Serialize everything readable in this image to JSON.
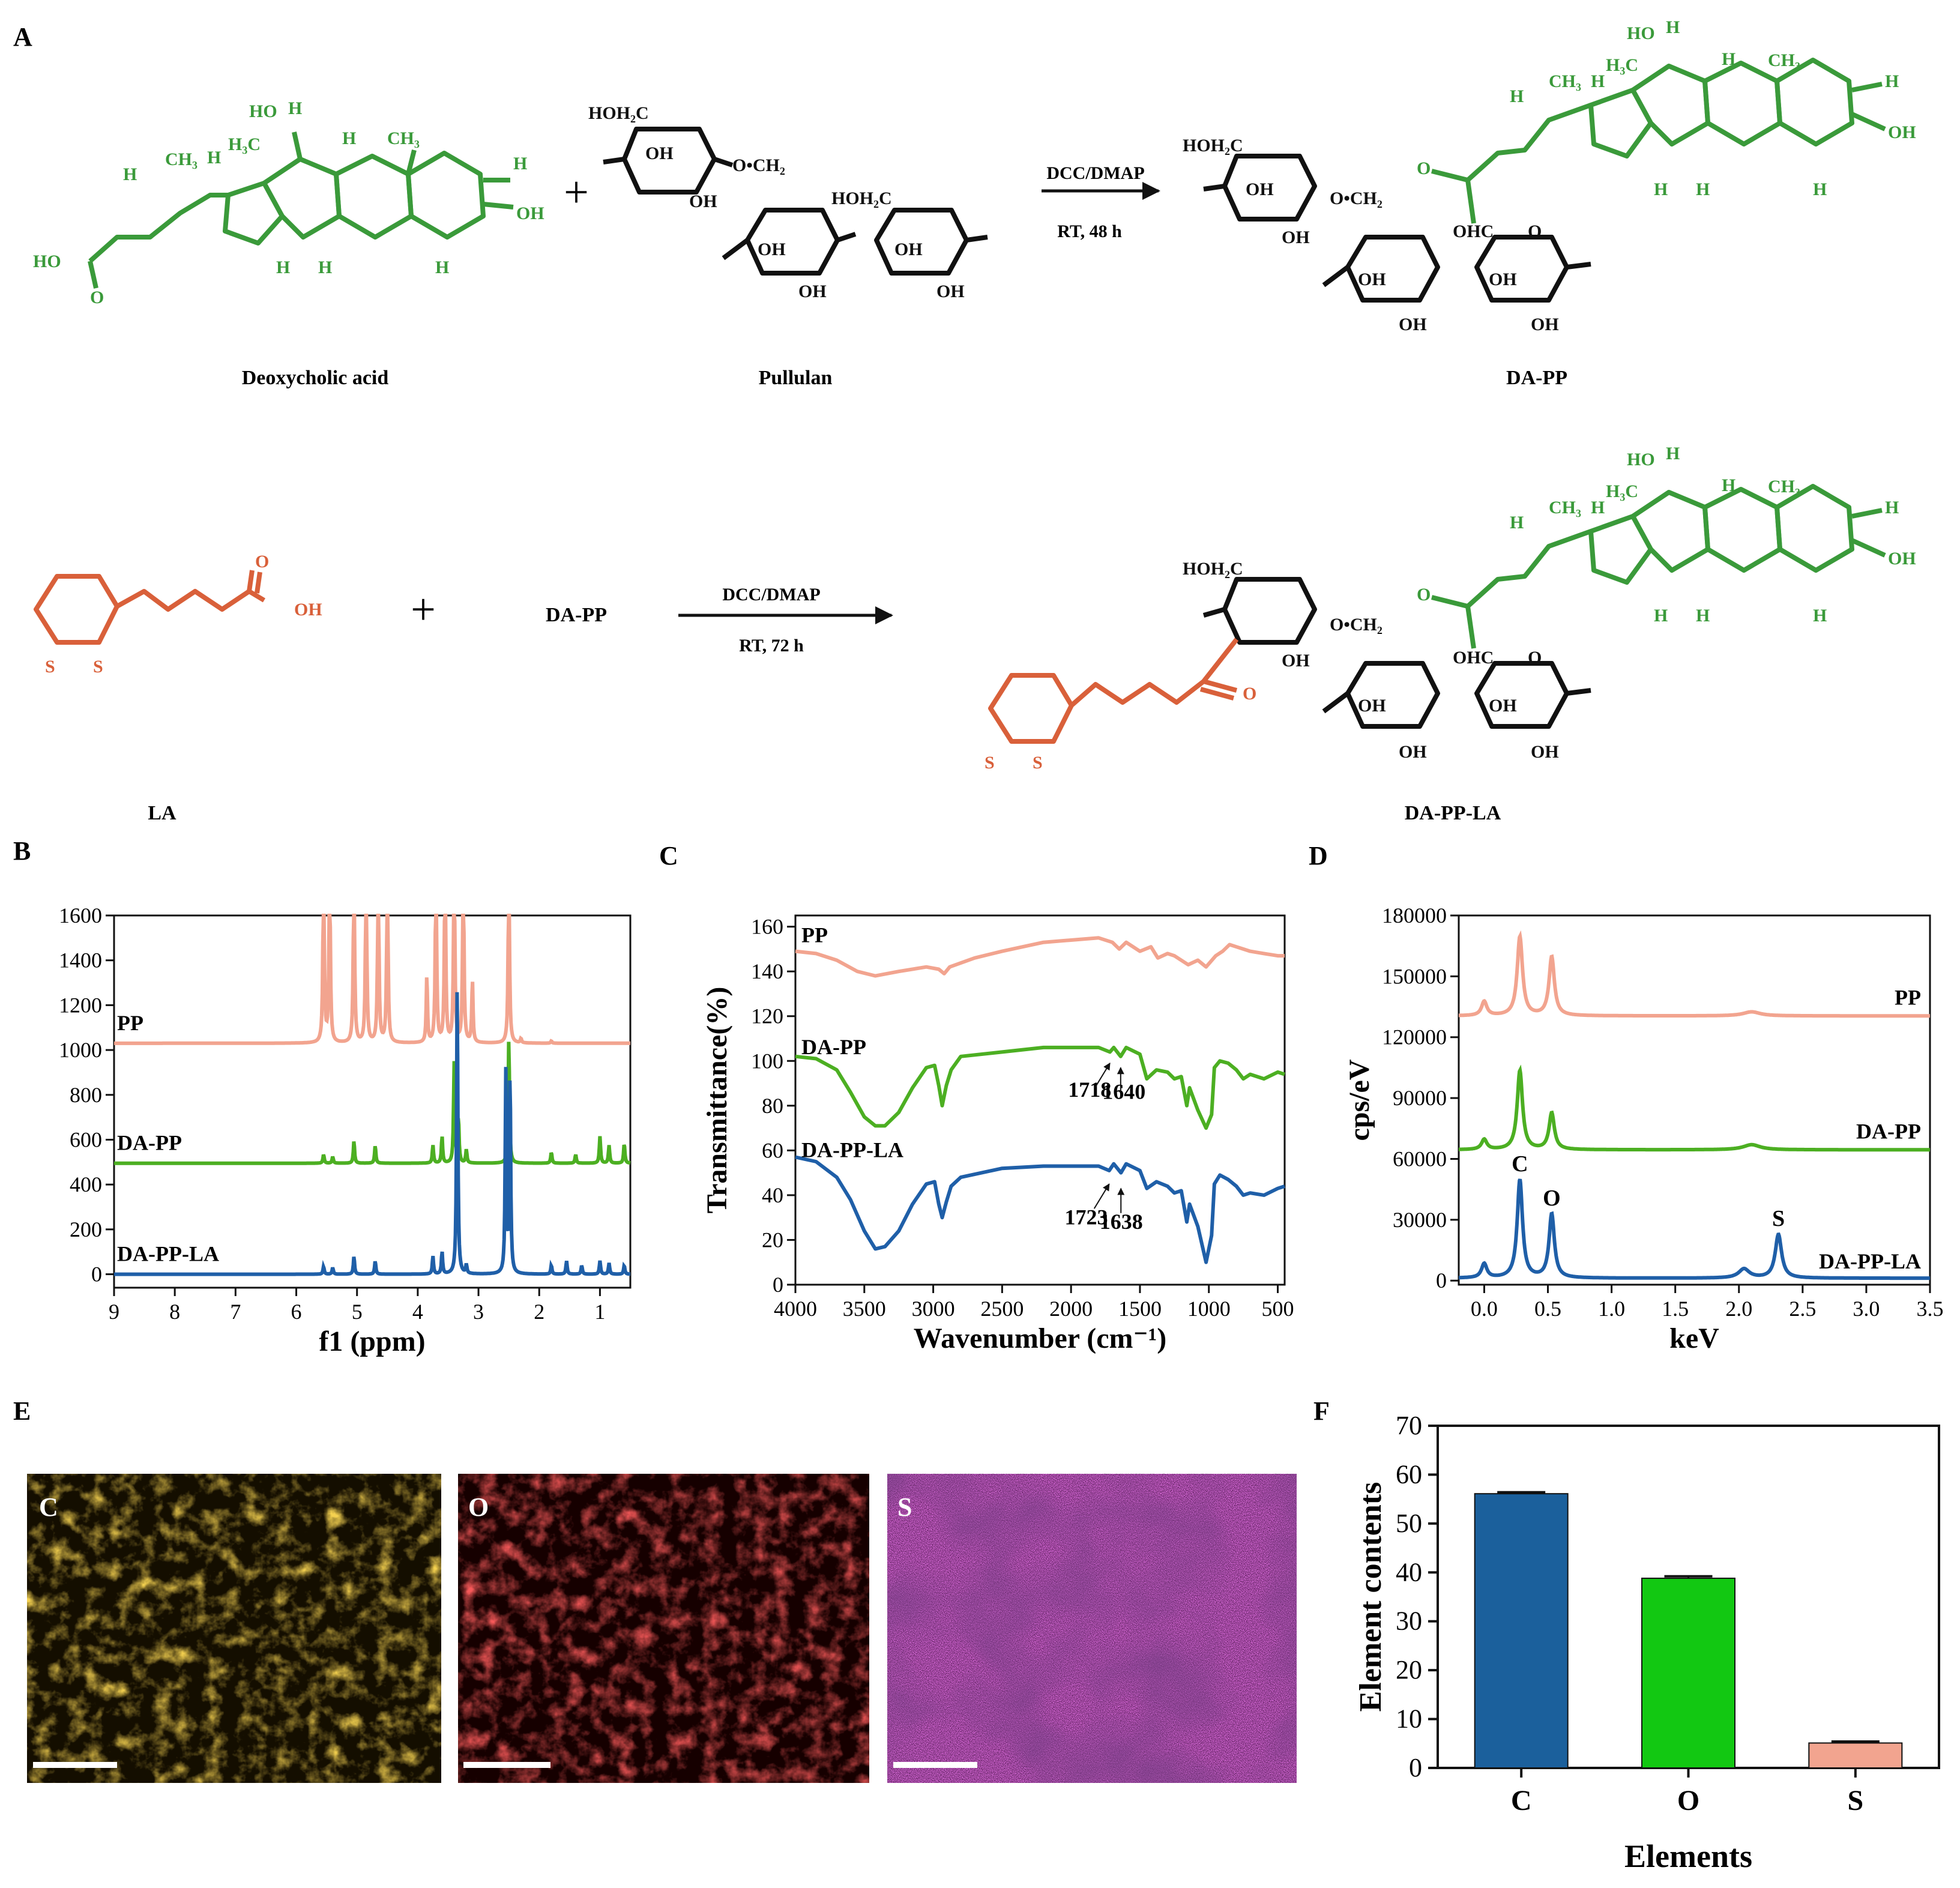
{
  "panel_labels": {
    "a": "A",
    "b": "B",
    "c": "C",
    "d": "D",
    "e": "E",
    "f": "F"
  },
  "scheme": {
    "reaction1": {
      "reactant1_name": "Deoxycholic acid",
      "reactant2_name": "Pullulan",
      "conditions_top": "DCC/DMAP",
      "conditions_bottom": "RT, 48 h",
      "product_name": "DA-PP"
    },
    "reaction2": {
      "reactant1_name": "LA",
      "reactant2_label": "DA-PP",
      "conditions_top": "DCC/DMAP",
      "conditions_bottom": "RT, 72 h",
      "product_name": "DA-PP-LA"
    },
    "atoms": {
      "ho": "HO",
      "oh": "OH",
      "h": "H",
      "ch3": "CH₃",
      "h3c": "H₃C",
      "o": "O",
      "s": "S",
      "hoh2c": "HOH₂C",
      "och2": "O•CH₂",
      "ohc": "OHC",
      "plus": "+"
    },
    "colors": {
      "deoxycholic": "#3a9a3a",
      "lipoic": "#d9603a",
      "pullulan": "#111111"
    }
  },
  "chart_data": [
    {
      "panel": "B",
      "type": "line",
      "xlabel": "f1 (ppm)",
      "ylabel": "",
      "xlim": [
        9,
        0.5
      ],
      "ylim": [
        -60,
        1600
      ],
      "xticks": [
        9,
        8,
        7,
        6,
        5,
        4,
        3,
        2,
        1
      ],
      "yticks": [
        0,
        200,
        400,
        600,
        800,
        1000,
        1200,
        1400,
        1600
      ],
      "series": [
        {
          "name": "PP",
          "color": "#f2a48f",
          "baseline": 1030,
          "peaks": [
            [
              5.55,
              900
            ],
            [
              5.45,
              900
            ],
            [
              5.05,
              900
            ],
            [
              4.85,
              900
            ],
            [
              4.65,
              900
            ],
            [
              4.5,
              900
            ],
            [
              3.85,
              300
            ],
            [
              3.7,
              900
            ],
            [
              3.55,
              900
            ],
            [
              3.4,
              900
            ],
            [
              3.25,
              900
            ],
            [
              3.1,
              280
            ],
            [
              2.5,
              900
            ],
            [
              2.3,
              20
            ],
            [
              1.8,
              10
            ]
          ]
        },
        {
          "name": "DA-PP",
          "color": "#4caf22",
          "baseline": 495,
          "peaks": [
            [
              5.55,
              40
            ],
            [
              5.4,
              30
            ],
            [
              5.05,
              100
            ],
            [
              4.7,
              80
            ],
            [
              3.75,
              80
            ],
            [
              3.6,
              120
            ],
            [
              3.4,
              450
            ],
            [
              3.33,
              200
            ],
            [
              3.2,
              60
            ],
            [
              2.5,
              560
            ],
            [
              1.8,
              50
            ],
            [
              1.4,
              40
            ],
            [
              1.0,
              120
            ],
            [
              0.85,
              80
            ],
            [
              0.6,
              90
            ]
          ]
        },
        {
          "name": "DA-PP-LA",
          "color": "#1f5fa8",
          "baseline": 0,
          "peaks": [
            [
              5.55,
              35
            ],
            [
              5.4,
              30
            ],
            [
              5.05,
              80
            ],
            [
              4.7,
              60
            ],
            [
              3.75,
              80
            ],
            [
              3.6,
              100
            ],
            [
              3.35,
              1300
            ],
            [
              3.2,
              40
            ],
            [
              2.55,
              900
            ],
            [
              2.48,
              900
            ],
            [
              1.8,
              40
            ],
            [
              1.55,
              60
            ],
            [
              1.3,
              40
            ],
            [
              1.0,
              60
            ],
            [
              0.85,
              50
            ],
            [
              0.6,
              40
            ]
          ]
        }
      ]
    },
    {
      "panel": "C",
      "type": "line",
      "xlabel": "Wavenumber (cm⁻¹)",
      "ylabel": "Transmittance(%)",
      "xlim": [
        4000,
        450
      ],
      "ylim": [
        0,
        165
      ],
      "xticks": [
        4000,
        3500,
        3000,
        2500,
        2000,
        1500,
        1000,
        500
      ],
      "yticks": [
        0,
        20,
        40,
        60,
        80,
        100,
        120,
        140,
        160
      ],
      "series": [
        {
          "name": "PP",
          "color": "#f2a48f",
          "points": [
            [
              4000,
              149
            ],
            [
              3850,
              148
            ],
            [
              3700,
              145
            ],
            [
              3550,
              140
            ],
            [
              3420,
              138
            ],
            [
              3250,
              140
            ],
            [
              3050,
              142
            ],
            [
              2960,
              141
            ],
            [
              2920,
              139
            ],
            [
              2880,
              142
            ],
            [
              2700,
              146
            ],
            [
              2500,
              149
            ],
            [
              2200,
              153
            ],
            [
              2000,
              154
            ],
            [
              1800,
              155
            ],
            [
              1700,
              153
            ],
            [
              1650,
              150
            ],
            [
              1600,
              153
            ],
            [
              1500,
              149
            ],
            [
              1420,
              151
            ],
            [
              1370,
              146
            ],
            [
              1300,
              148
            ],
            [
              1250,
              147
            ],
            [
              1150,
              143
            ],
            [
              1080,
              145
            ],
            [
              1020,
              142
            ],
            [
              950,
              147
            ],
            [
              900,
              149
            ],
            [
              850,
              152
            ],
            [
              800,
              151
            ],
            [
              750,
              150
            ],
            [
              700,
              149
            ],
            [
              600,
              148
            ],
            [
              500,
              147
            ],
            [
              450,
              147
            ]
          ]
        },
        {
          "name": "DA-PP",
          "color": "#4caf22",
          "points": [
            [
              4000,
              102
            ],
            [
              3850,
              101
            ],
            [
              3700,
              96
            ],
            [
              3600,
              86
            ],
            [
              3500,
              75
            ],
            [
              3420,
              71
            ],
            [
              3350,
              71
            ],
            [
              3250,
              77
            ],
            [
              3150,
              88
            ],
            [
              3050,
              97
            ],
            [
              2990,
              98
            ],
            [
              2960,
              89
            ],
            [
              2935,
              80
            ],
            [
              2905,
              89
            ],
            [
              2870,
              96
            ],
            [
              2800,
              102
            ],
            [
              2500,
              104
            ],
            [
              2200,
              106
            ],
            [
              2000,
              106
            ],
            [
              1800,
              106
            ],
            [
              1718,
              104
            ],
            [
              1690,
              106
            ],
            [
              1640,
              102
            ],
            [
              1600,
              106
            ],
            [
              1500,
              103
            ],
            [
              1450,
              92
            ],
            [
              1380,
              96
            ],
            [
              1300,
              95
            ],
            [
              1250,
              92
            ],
            [
              1200,
              93
            ],
            [
              1160,
              80
            ],
            [
              1140,
              88
            ],
            [
              1080,
              78
            ],
            [
              1020,
              70
            ],
            [
              980,
              76
            ],
            [
              960,
              97
            ],
            [
              920,
              100
            ],
            [
              860,
              99
            ],
            [
              800,
              96
            ],
            [
              750,
              92
            ],
            [
              700,
              94
            ],
            [
              600,
              92
            ],
            [
              500,
              95
            ],
            [
              450,
              94
            ]
          ]
        },
        {
          "name": "DA-PP-LA",
          "color": "#1f5fa8",
          "points": [
            [
              4000,
              57
            ],
            [
              3850,
              55
            ],
            [
              3700,
              48
            ],
            [
              3600,
              38
            ],
            [
              3500,
              24
            ],
            [
              3420,
              16
            ],
            [
              3350,
              17
            ],
            [
              3250,
              24
            ],
            [
              3150,
              36
            ],
            [
              3050,
              45
            ],
            [
              2990,
              46
            ],
            [
              2960,
              36
            ],
            [
              2935,
              30
            ],
            [
              2905,
              37
            ],
            [
              2870,
              44
            ],
            [
              2800,
              48
            ],
            [
              2500,
              52
            ],
            [
              2200,
              53
            ],
            [
              2000,
              53
            ],
            [
              1800,
              53
            ],
            [
              1723,
              51
            ],
            [
              1690,
              54
            ],
            [
              1638,
              50
            ],
            [
              1600,
              54
            ],
            [
              1500,
              51
            ],
            [
              1450,
              43
            ],
            [
              1380,
              46
            ],
            [
              1300,
              44
            ],
            [
              1250,
              41
            ],
            [
              1200,
              42
            ],
            [
              1160,
              28
            ],
            [
              1140,
              36
            ],
            [
              1080,
              26
            ],
            [
              1020,
              10
            ],
            [
              980,
              22
            ],
            [
              960,
              45
            ],
            [
              920,
              49
            ],
            [
              860,
              47
            ],
            [
              800,
              44
            ],
            [
              750,
              40
            ],
            [
              700,
              41
            ],
            [
              600,
              40
            ],
            [
              500,
              43
            ],
            [
              450,
              44
            ]
          ]
        }
      ],
      "annotations": [
        {
          "text": "1718",
          "series": "DA-PP",
          "x": 1718
        },
        {
          "text": "1640",
          "series": "DA-PP",
          "x": 1640
        },
        {
          "text": "1723",
          "series": "DA-PP-LA",
          "x": 1723
        },
        {
          "text": "1638",
          "series": "DA-PP-LA",
          "x": 1638
        }
      ]
    },
    {
      "panel": "D",
      "type": "line",
      "xlabel": "keV",
      "ylabel": "cps/eV",
      "xlim": [
        -0.2,
        3.5
      ],
      "ylim": [
        -2000,
        180000
      ],
      "xticks": [
        0.0,
        0.5,
        1.0,
        1.5,
        2.0,
        2.5,
        3.0,
        3.5
      ],
      "yticks": [
        0,
        30000,
        60000,
        90000,
        120000,
        150000,
        180000
      ],
      "series": [
        {
          "name": "PP",
          "color": "#f2a48f",
          "baseline": 130500,
          "peaks": [
            [
              0.0,
              7000,
              0.025
            ],
            [
              0.28,
              39000,
              0.025
            ],
            [
              0.53,
              29000,
              0.025
            ],
            [
              2.1,
              2000,
              0.08
            ]
          ]
        },
        {
          "name": "DA-PP",
          "color": "#4caf22",
          "baseline": 64500,
          "peaks": [
            [
              0.0,
              5000,
              0.025
            ],
            [
              0.28,
              39000,
              0.025
            ],
            [
              0.53,
              18000,
              0.025
            ],
            [
              2.1,
              2500,
              0.08
            ]
          ]
        },
        {
          "name": "DA-PP-LA",
          "color": "#1f5fa8",
          "baseline": 1200,
          "peaks": [
            [
              0.0,
              7000,
              0.025
            ],
            [
              0.28,
              48500,
              0.025
            ],
            [
              0.53,
              31500,
              0.025
            ],
            [
              2.04,
              4500,
              0.05
            ],
            [
              2.31,
              21500,
              0.03
            ]
          ]
        }
      ],
      "annotations": [
        {
          "text": "C",
          "x": 0.28,
          "y": 54000
        },
        {
          "text": "O",
          "x": 0.53,
          "y": 37000
        },
        {
          "text": "S",
          "x": 2.31,
          "y": 27000
        }
      ]
    },
    {
      "panel": "F",
      "type": "bar",
      "title": "",
      "xlabel": "Elements",
      "ylabel": "Element contents",
      "categories": [
        "C",
        "O",
        "S"
      ],
      "values": [
        56.1,
        38.8,
        5.1
      ],
      "errors": [
        0.3,
        0.4,
        0.3
      ],
      "colors": [
        "#1b609c",
        "#12c812",
        "#f2a48f"
      ],
      "ylim": [
        0,
        70
      ],
      "yticks": [
        0,
        10,
        20,
        30,
        40,
        50,
        60,
        70
      ]
    }
  ],
  "maps": {
    "items": [
      {
        "label": "C",
        "color": "#e8a415"
      },
      {
        "label": "O",
        "color": "#ea1c1c"
      },
      {
        "label": "S",
        "color": "#dd2fdd"
      }
    ]
  }
}
